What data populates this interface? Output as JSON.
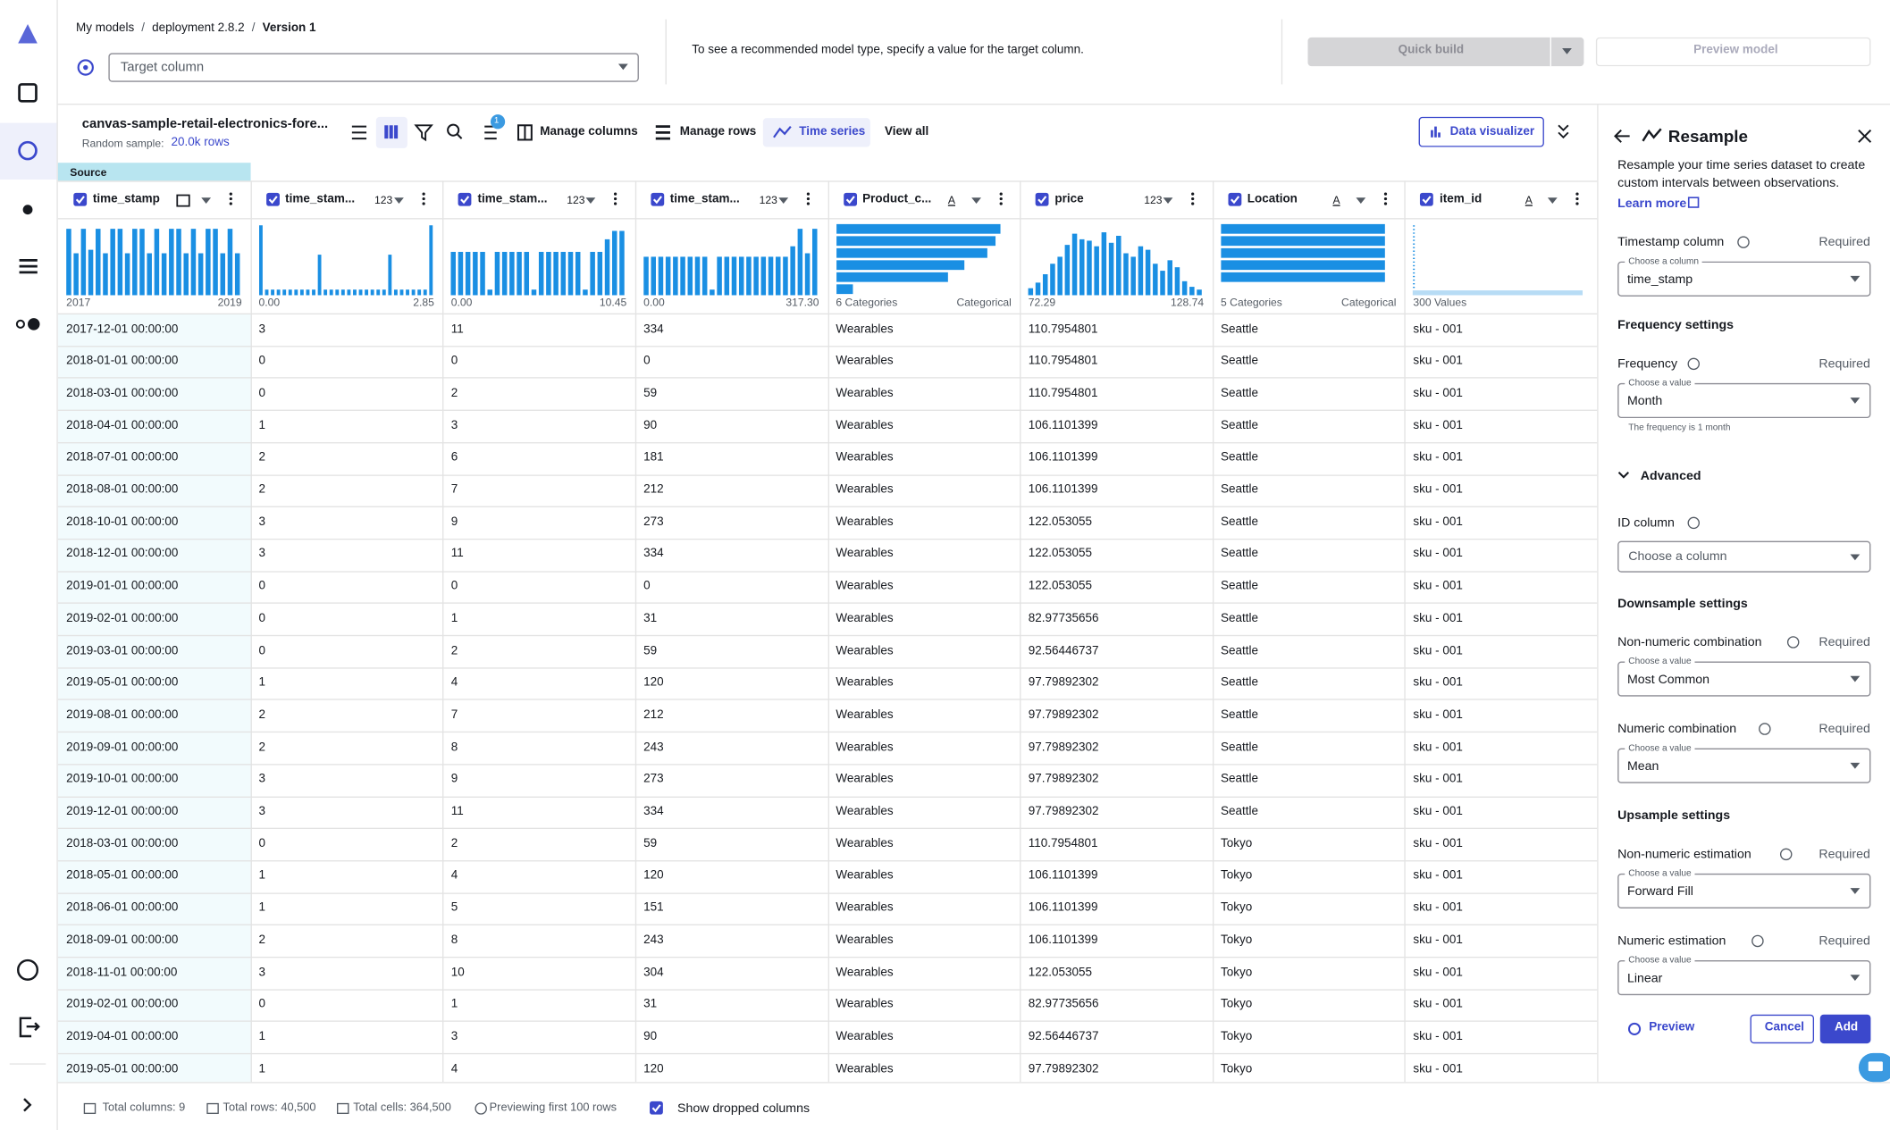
{
  "header": {
    "breadcrumb": [
      "My models",
      "deployment 2.8.2",
      "Version 1"
    ],
    "separator": "/",
    "target_placeholder": "Target column",
    "hint": "To see a recommended model type, specify a value for the target column.",
    "quick_build": "Quick build",
    "preview_model": "Preview model"
  },
  "toolbar": {
    "dataset": "canvas-sample-retail-electronics-fore...",
    "sample_label": "Random sample:",
    "sample_value": "20.0k rows",
    "badge": "1",
    "manage_columns": "Manage columns",
    "manage_rows": "Manage rows",
    "time_series": "Time series",
    "view_all": "View all",
    "data_visualizer": "Data visualizer"
  },
  "table": {
    "group": "Source",
    "columns": [
      {
        "name": "time_stamp",
        "range": [
          "2017",
          "2019"
        ],
        "histogram": [
          95,
          60,
          95,
          65,
          95,
          60,
          95,
          95,
          60,
          95,
          95,
          60,
          95,
          60,
          95,
          95,
          60,
          95,
          60,
          95,
          95,
          60,
          95,
          60
        ]
      },
      {
        "name": "time_stam...",
        "type": "123",
        "range": [
          "0.00",
          "2.85"
        ],
        "histogram": [
          100,
          8,
          8,
          8,
          8,
          8,
          8,
          8,
          8,
          8,
          58,
          8,
          8,
          8,
          8,
          8,
          8,
          8,
          8,
          8,
          8,
          8,
          58,
          8,
          8,
          8,
          8,
          8,
          8,
          100
        ]
      },
      {
        "name": "time_stam...",
        "type": "123",
        "range": [
          "0.00",
          "10.45"
        ],
        "histogram": [
          62,
          62,
          62,
          62,
          62,
          8,
          62,
          62,
          62,
          62,
          62,
          8,
          62,
          62,
          62,
          62,
          62,
          62,
          8,
          62,
          62,
          80,
          92,
          92
        ]
      },
      {
        "name": "time_stam...",
        "type": "123",
        "range": [
          "0.00",
          "317.30"
        ],
        "histogram": [
          55,
          55,
          55,
          55,
          55,
          55,
          55,
          55,
          55,
          8,
          55,
          55,
          55,
          55,
          55,
          55,
          55,
          55,
          55,
          55,
          70,
          95,
          60,
          95
        ]
      },
      {
        "name": "Product_c...",
        "type": "A",
        "range": [
          "6 Categories",
          "Categorical"
        ],
        "histogram": [
          100,
          97,
          92,
          78,
          68,
          10
        ]
      },
      {
        "name": "price",
        "type": "123",
        "range": [
          "72.29",
          "128.74"
        ],
        "histogram": [
          10,
          18,
          30,
          45,
          55,
          72,
          88,
          80,
          78,
          70,
          90,
          75,
          85,
          60,
          55,
          70,
          65,
          45,
          35,
          50,
          40,
          20,
          12,
          8
        ]
      },
      {
        "name": "Location",
        "type": "A",
        "range": [
          "5 Categories",
          "Categorical"
        ],
        "histogram": [
          100,
          100,
          100,
          100,
          100
        ]
      },
      {
        "name": "item_id",
        "type": "A",
        "range": [
          "300 Values"
        ]
      }
    ],
    "rows": [
      [
        "2017-12-01 00:00:00",
        "3",
        "11",
        "334",
        "Wearables",
        "110.7954801",
        "Seattle",
        "sku - 001"
      ],
      [
        "2018-01-01 00:00:00",
        "0",
        "0",
        "0",
        "Wearables",
        "110.7954801",
        "Seattle",
        "sku - 001"
      ],
      [
        "2018-03-01 00:00:00",
        "0",
        "2",
        "59",
        "Wearables",
        "110.7954801",
        "Seattle",
        "sku - 001"
      ],
      [
        "2018-04-01 00:00:00",
        "1",
        "3",
        "90",
        "Wearables",
        "106.1101399",
        "Seattle",
        "sku - 001"
      ],
      [
        "2018-07-01 00:00:00",
        "2",
        "6",
        "181",
        "Wearables",
        "106.1101399",
        "Seattle",
        "sku - 001"
      ],
      [
        "2018-08-01 00:00:00",
        "2",
        "7",
        "212",
        "Wearables",
        "106.1101399",
        "Seattle",
        "sku - 001"
      ],
      [
        "2018-10-01 00:00:00",
        "3",
        "9",
        "273",
        "Wearables",
        "122.053055",
        "Seattle",
        "sku - 001"
      ],
      [
        "2018-12-01 00:00:00",
        "3",
        "11",
        "334",
        "Wearables",
        "122.053055",
        "Seattle",
        "sku - 001"
      ],
      [
        "2019-01-01 00:00:00",
        "0",
        "0",
        "0",
        "Wearables",
        "122.053055",
        "Seattle",
        "sku - 001"
      ],
      [
        "2019-02-01 00:00:00",
        "0",
        "1",
        "31",
        "Wearables",
        "82.97735656",
        "Seattle",
        "sku - 001"
      ],
      [
        "2019-03-01 00:00:00",
        "0",
        "2",
        "59",
        "Wearables",
        "92.56446737",
        "Seattle",
        "sku - 001"
      ],
      [
        "2019-05-01 00:00:00",
        "1",
        "4",
        "120",
        "Wearables",
        "97.79892302",
        "Seattle",
        "sku - 001"
      ],
      [
        "2019-08-01 00:00:00",
        "2",
        "7",
        "212",
        "Wearables",
        "97.79892302",
        "Seattle",
        "sku - 001"
      ],
      [
        "2019-09-01 00:00:00",
        "2",
        "8",
        "243",
        "Wearables",
        "97.79892302",
        "Seattle",
        "sku - 001"
      ],
      [
        "2019-10-01 00:00:00",
        "3",
        "9",
        "273",
        "Wearables",
        "97.79892302",
        "Seattle",
        "sku - 001"
      ],
      [
        "2019-12-01 00:00:00",
        "3",
        "11",
        "334",
        "Wearables",
        "97.79892302",
        "Seattle",
        "sku - 001"
      ],
      [
        "2018-03-01 00:00:00",
        "0",
        "2",
        "59",
        "Wearables",
        "110.7954801",
        "Tokyo",
        "sku - 001"
      ],
      [
        "2018-05-01 00:00:00",
        "1",
        "4",
        "120",
        "Wearables",
        "106.1101399",
        "Tokyo",
        "sku - 001"
      ],
      [
        "2018-06-01 00:00:00",
        "1",
        "5",
        "151",
        "Wearables",
        "106.1101399",
        "Tokyo",
        "sku - 001"
      ],
      [
        "2018-09-01 00:00:00",
        "2",
        "8",
        "243",
        "Wearables",
        "106.1101399",
        "Tokyo",
        "sku - 001"
      ],
      [
        "2018-11-01 00:00:00",
        "3",
        "10",
        "304",
        "Wearables",
        "122.053055",
        "Tokyo",
        "sku - 001"
      ],
      [
        "2019-02-01 00:00:00",
        "0",
        "1",
        "31",
        "Wearables",
        "82.97735656",
        "Tokyo",
        "sku - 001"
      ],
      [
        "2019-04-01 00:00:00",
        "1",
        "3",
        "90",
        "Wearables",
        "92.56446737",
        "Tokyo",
        "sku - 001"
      ],
      [
        "2019-05-01 00:00:00",
        "1",
        "4",
        "120",
        "Wearables",
        "97.79892302",
        "Tokyo",
        "sku - 001"
      ]
    ]
  },
  "footer": {
    "total_columns": "Total columns: 9",
    "total_rows": "Total rows: 40,500",
    "total_cells": "Total cells: 364,500",
    "previewing": "Previewing first 100 rows",
    "show_dropped": "Show dropped columns"
  },
  "panel": {
    "title": "Resample",
    "description": "Resample your time series dataset to create custom intervals between observations.",
    "learn_more": "Learn more",
    "headings": [
      "Frequency settings",
      "Advanced",
      "Downsample settings",
      "Upsample settings"
    ],
    "fields": [
      {
        "label": "Timestamp column",
        "required": "Required",
        "caption": "Choose a column",
        "value": "time_stamp"
      },
      {
        "label": "Frequency",
        "required": "Required",
        "caption": "Choose a value",
        "value": "Month",
        "hint": "The frequency is 1 month"
      },
      {
        "label": "ID column",
        "placeholder": "Choose a column"
      },
      {
        "label": "Non-numeric combination",
        "required": "Required",
        "caption": "Choose a value",
        "value": "Most Common"
      },
      {
        "label": "Numeric combination",
        "required": "Required",
        "caption": "Choose a value",
        "value": "Mean"
      },
      {
        "label": "Non-numeric estimation",
        "required": "Required",
        "caption": "Choose a value",
        "value": "Forward Fill"
      },
      {
        "label": "Numeric estimation",
        "required": "Required",
        "caption": "Choose a value",
        "value": "Linear"
      }
    ],
    "preview": "Preview",
    "cancel": "Cancel",
    "add": "Add"
  }
}
